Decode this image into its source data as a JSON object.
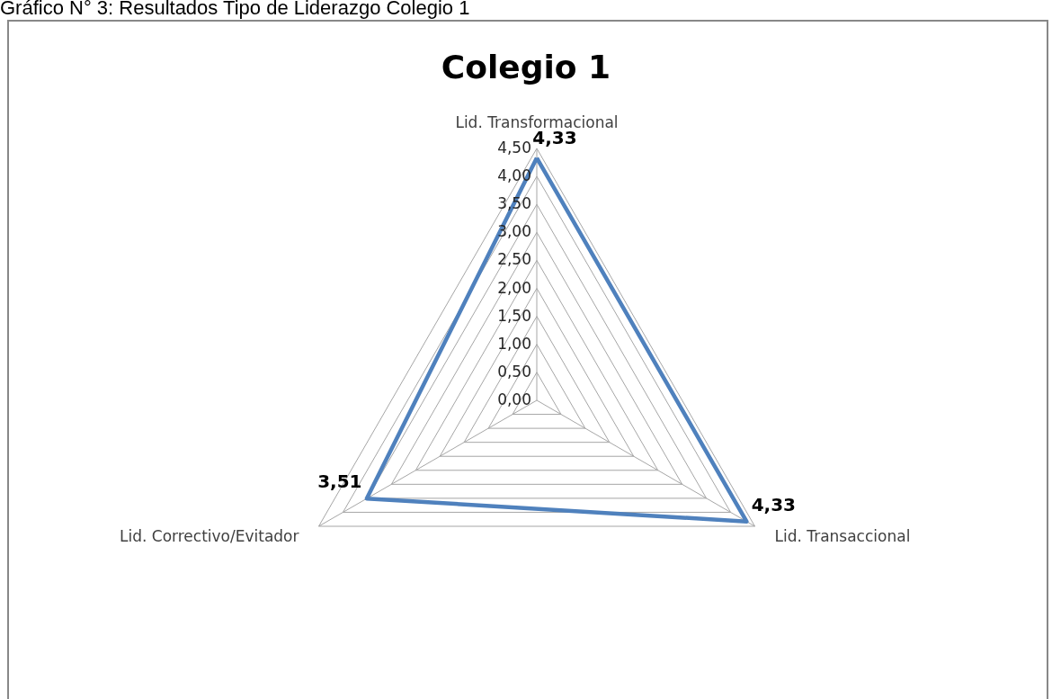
{
  "chart_data": {
    "type": "radar",
    "title": "Colegio 1",
    "annotations": [
      "Gráfico N° 3: Resultados Tipo de Liderazgo Colegio 1"
    ],
    "categories": [
      "Lid. Transformacional",
      "Lid. Transaccional",
      "Lid. Correctivo/Evitador"
    ],
    "series": [
      {
        "color": "#4f81bd",
        "values": [
          4.33,
          4.33,
          3.51
        ],
        "value_labels": [
          "4,33",
          "4,33",
          "3,51"
        ]
      }
    ],
    "ylim": [
      0,
      4.5
    ],
    "yticks": [
      {
        "value": 0,
        "label": "0,00"
      },
      {
        "value": 0.5,
        "label": "0,50"
      },
      {
        "value": 1,
        "label": "1,00"
      },
      {
        "value": 1.5,
        "label": "1,50"
      },
      {
        "value": 2,
        "label": "2,00"
      },
      {
        "value": 2.5,
        "label": "2,50"
      },
      {
        "value": 3,
        "label": "3,00"
      },
      {
        "value": 3.5,
        "label": "3,50"
      },
      {
        "value": 4,
        "label": "4,00"
      },
      {
        "value": 4.5,
        "label": "4,50"
      }
    ],
    "grid": true
  }
}
